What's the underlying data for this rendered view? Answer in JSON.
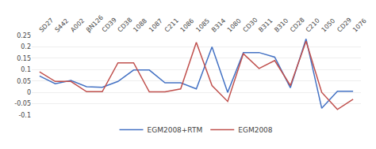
{
  "chart_data": {
    "type": "line",
    "categories": [
      "SD27",
      "S442",
      "A002",
      "βN126",
      "CD39",
      "CD38",
      "1088",
      "1087",
      "C211",
      "1086",
      "1085",
      "B314",
      "1080",
      "CD30",
      "B311",
      "B310",
      "CD28",
      "C210",
      "1050",
      "CD29",
      "1076"
    ],
    "series": [
      {
        "name": "EGM2008+RTM",
        "color": "#4472C4",
        "values": [
          0.072,
          0.038,
          0.052,
          0.025,
          0.022,
          0.048,
          0.098,
          0.098,
          0.042,
          0.042,
          0.015,
          0.2,
          0.0,
          0.175,
          0.175,
          0.155,
          0.02,
          0.235,
          -0.07,
          0.005,
          0.005
        ]
      },
      {
        "name": "EGM2008",
        "color": "#C0504D",
        "values": [
          0.09,
          0.048,
          0.048,
          0.003,
          0.003,
          0.13,
          0.13,
          0.002,
          0.002,
          0.015,
          0.22,
          0.03,
          -0.04,
          0.17,
          0.105,
          0.14,
          0.03,
          0.225,
          0.0,
          -0.075,
          -0.03
        ]
      }
    ],
    "ylim": [
      -0.1,
      0.25
    ],
    "yticks": [
      -0.1,
      -0.05,
      0,
      0.05,
      0.1,
      0.15,
      0.2,
      0.25
    ],
    "grid": true,
    "legend": "bottom"
  }
}
